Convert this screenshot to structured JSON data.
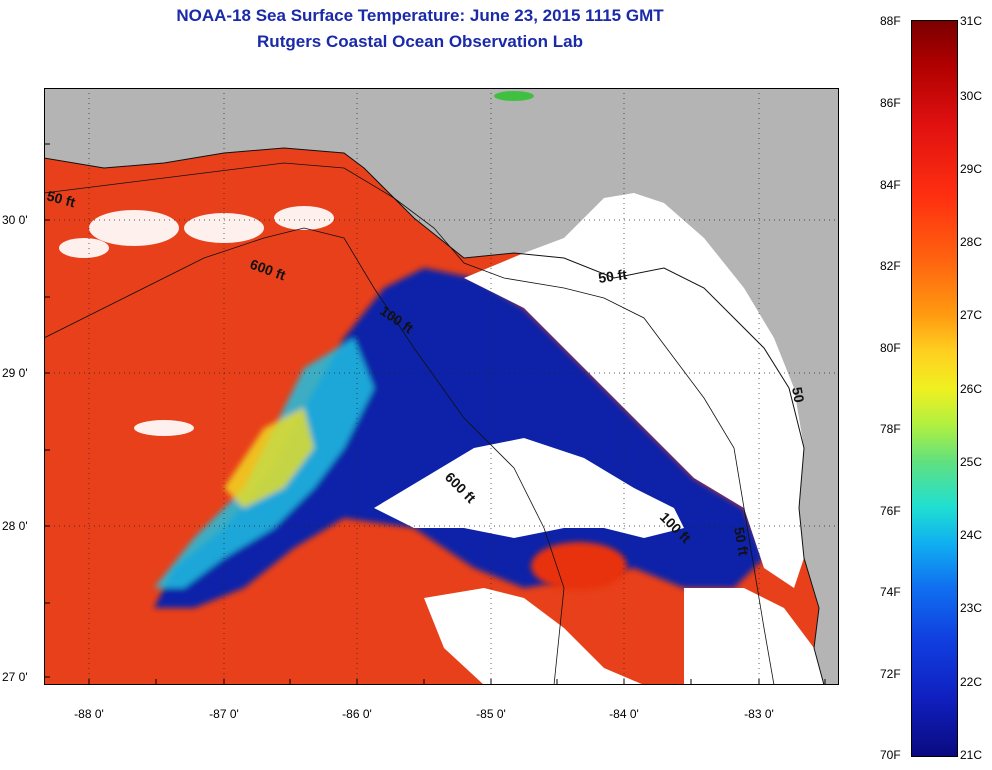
{
  "header": {
    "title": "NOAA-18 Sea Surface Temperature:  June 23, 2015 1115 GMT",
    "subtitle": "Rutgers Coastal Ocean Observation Lab"
  },
  "axes": {
    "lat_labels": [
      "30 0'",
      "29 0'",
      "28 0'",
      "27 0'"
    ],
    "lon_labels": [
      "-88 0'",
      "-87 0'",
      "-86 0'",
      "-85 0'",
      "-84 0'",
      "-83 0'"
    ]
  },
  "contours": {
    "labels": [
      "50 ft",
      "600 ft",
      "100 ft",
      "50 ft",
      "600 ft",
      "100 ft",
      "50 ft",
      "50"
    ]
  },
  "colorbar": {
    "f_labels": [
      "88F",
      "86F",
      "84F",
      "82F",
      "80F",
      "78F",
      "76F",
      "74F",
      "72F",
      "70F"
    ],
    "c_labels": [
      "31C",
      "30C",
      "29C",
      "28C",
      "27C",
      "26C",
      "25C",
      "24C",
      "23C",
      "22C",
      "21C"
    ]
  },
  "colors": {
    "land": "#b4b4b4",
    "cloud": "#ffffff",
    "warm": "#e83a14",
    "cool": "#0a20a8",
    "title": "#1a2aa8"
  }
}
